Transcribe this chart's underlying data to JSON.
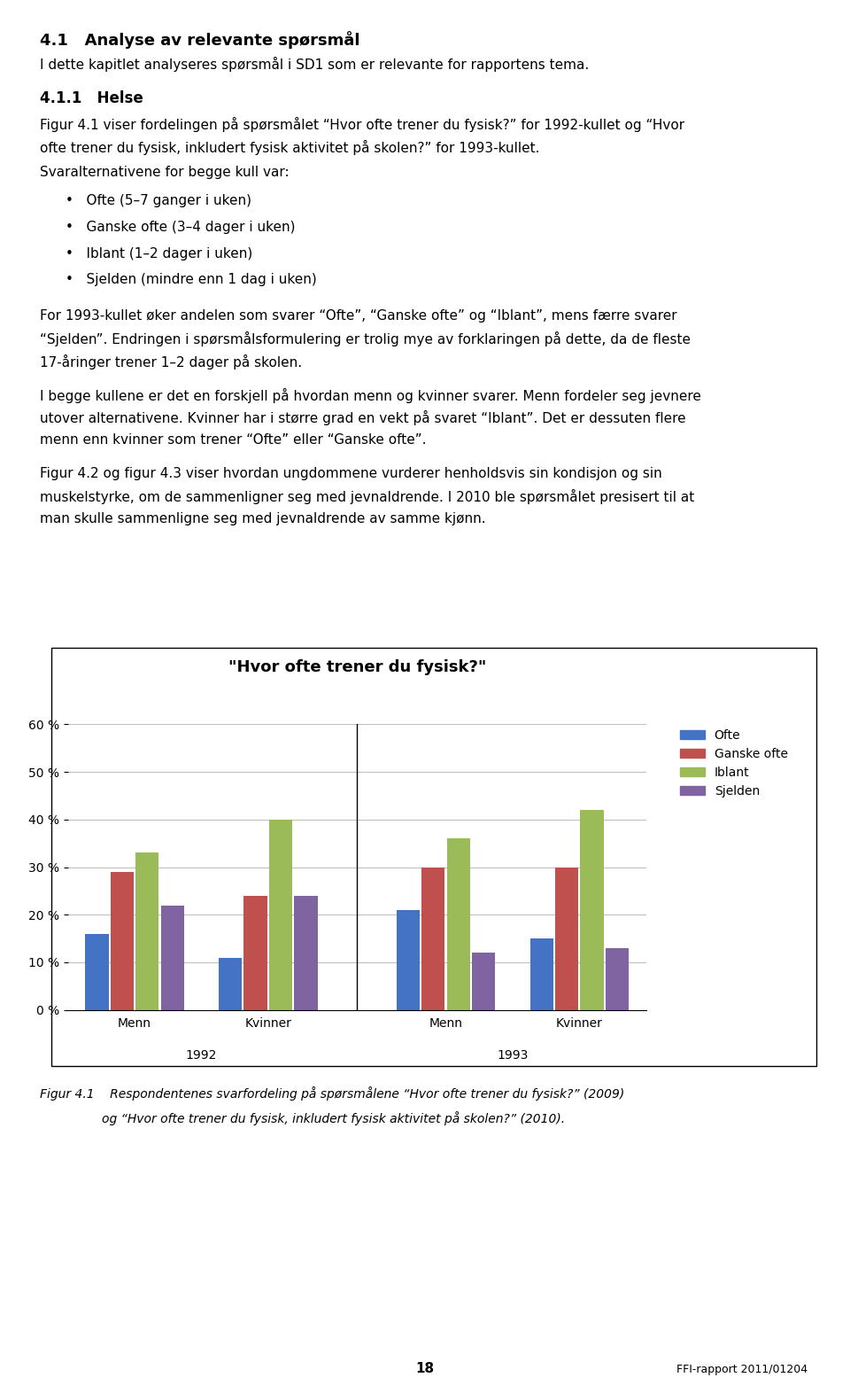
{
  "title": "\"Hvor ofte trener du fysisk?\"",
  "groups": [
    "Menn",
    "Kvinner",
    "Menn",
    "Kvinner"
  ],
  "years": [
    "1992",
    "1993"
  ],
  "series": {
    "Ofte": [
      16,
      11,
      21,
      15
    ],
    "Ganske ofte": [
      29,
      24,
      30,
      30
    ],
    "Iblant": [
      33,
      40,
      36,
      42
    ],
    "Sjelden": [
      22,
      24,
      12,
      13
    ]
  },
  "colors": {
    "Ofte": "#4472C4",
    "Ganske ofte": "#C0504D",
    "Iblant": "#9BBB59",
    "Sjelden": "#8064A2"
  },
  "ylim": [
    0,
    60
  ],
  "yticks": [
    0,
    10,
    20,
    30,
    40,
    50,
    60
  ],
  "ytick_labels": [
    "0 %",
    "10 %",
    "20 %",
    "30 %",
    "40 %",
    "50 %",
    "60 %"
  ],
  "legend_labels": [
    "Ofte",
    "Ganske ofte",
    "Iblant",
    "Sjelden"
  ],
  "chart_bg": "#FFFFFF",
  "plot_bg": "#FFFFFF",
  "grid_color": "#C0C0C0",
  "title_fontsize": 13,
  "tick_fontsize": 10,
  "legend_fontsize": 10,
  "group_label_fontsize": 10,
  "year_label_fontsize": 10,
  "figsize": [
    9.6,
    15.72
  ],
  "dpi": 100,
  "caption_line1": "Figur 4.1  Respondentenes svarfordeling på spørsmålene “Hvor ofte trener du fysisk?” (2009)",
  "caption_line2": "       og “Hvor ofte trener du fysisk, inkludert fysisk aktivitet på skolen?” (2010).",
  "page_number": "18",
  "page_right": "FFI-rapport 2011/01204"
}
